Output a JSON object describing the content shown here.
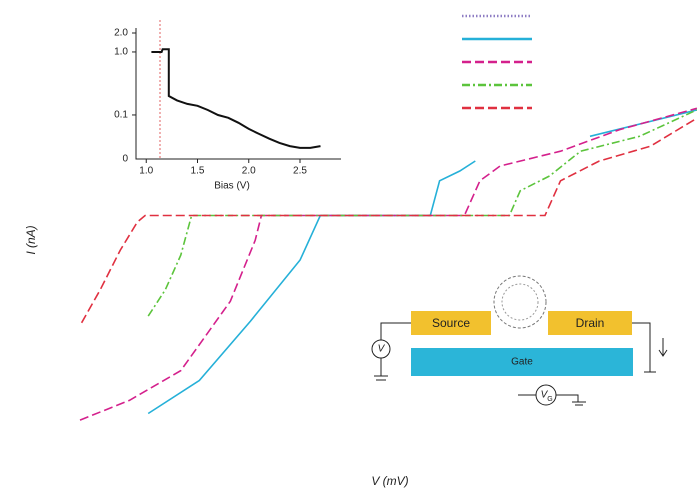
{
  "chart_data": [
    {
      "type": "line",
      "xlabel": "V (mV)",
      "ylabel": "I (nA)",
      "xlim": [
        -20,
        20
      ],
      "ylim": [
        -13,
        7
      ],
      "series": [
        {
          "color": "#8e7cc3",
          "dash": "dotted",
          "x": [
            -4.5,
            2.6
          ],
          "values": [
            0,
            0
          ]
        },
        {
          "color": "#25b0d8",
          "dash": "solid",
          "x": [
            -15.6,
            -12.3,
            -9,
            -5.8,
            -4.5,
            2.6,
            3.2,
            4.5,
            5.5,
            null,
            12.9,
            19.8
          ],
          "values": [
            -12,
            -10,
            -6.4,
            -2.7,
            0,
            0,
            2.1,
            2.7,
            3.3,
            null,
            4.8,
            6.4
          ]
        },
        {
          "color": "#d4208c",
          "dash": "dashed",
          "x": [
            -20,
            -16.8,
            -13.5,
            -10.3,
            -8.7,
            -8.3,
            4.8,
            5.8,
            7.1,
            11,
            14.8,
            19.8
          ],
          "values": [
            -12.4,
            -11.2,
            -9.4,
            -5.2,
            -1.5,
            0,
            0,
            2.1,
            3.0,
            3.9,
            5.2,
            6.5
          ]
        },
        {
          "color": "#5cc43c",
          "dash": "dashdot",
          "x": [
            -15.6,
            -14.5,
            -13.5,
            -12.8,
            7.7,
            8.4,
            10.3,
            12.3,
            16.1,
            19.8
          ],
          "values": [
            -6.1,
            -4.5,
            -2.4,
            0,
            0,
            1.5,
            2.4,
            3.9,
            4.8,
            6.4
          ]
        },
        {
          "color": "#e03040",
          "dash": "dashed",
          "x": [
            -19.9,
            -18.7,
            -17.4,
            -16.3,
            -15.8,
            10,
            11,
            13.5,
            16.8,
            19.8
          ],
          "values": [
            -6.5,
            -4.5,
            -2.1,
            -0.4,
            0,
            0,
            2.1,
            3.3,
            4.2,
            5.9
          ]
        }
      ]
    },
    {
      "type": "line",
      "xlabel": "Bias (V)",
      "ylog": true,
      "xlim": [
        0.9,
        2.9
      ],
      "ylim": [
        0.02,
        2.4
      ],
      "xticks": [
        {
          "value": 1,
          "label": "1.0"
        },
        1.5,
        {
          "value": 2,
          "label": "2.0"
        },
        2.5
      ],
      "yticks": [
        0.1,
        {
          "value": 1,
          "label": "1.0"
        },
        {
          "value": 2,
          "label": "2.0"
        }
      ],
      "y_bottom_label": "0",
      "series": [
        {
          "color": "#111111",
          "dash": "solid",
          "x": [
            1.05,
            1.15,
            1.16,
            1.2,
            1.22,
            1.22,
            1.3,
            1.4,
            1.5,
            1.6,
            1.7,
            1.8,
            1.9,
            2.0,
            2.1,
            2.2,
            2.3,
            2.4,
            2.5,
            2.6,
            2.7
          ],
          "values": [
            1.0,
            1.0,
            1.1,
            1.1,
            1.1,
            0.2,
            0.17,
            0.15,
            0.14,
            0.12,
            0.1,
            0.09,
            0.075,
            0.06,
            0.05,
            0.042,
            0.036,
            0.032,
            0.03,
            0.03,
            0.032
          ]
        }
      ]
    }
  ],
  "diagram": {
    "source": "Source",
    "drain": "Drain",
    "gate": "Gate",
    "v": "V",
    "vg": "V",
    "vg_sub": "G"
  }
}
